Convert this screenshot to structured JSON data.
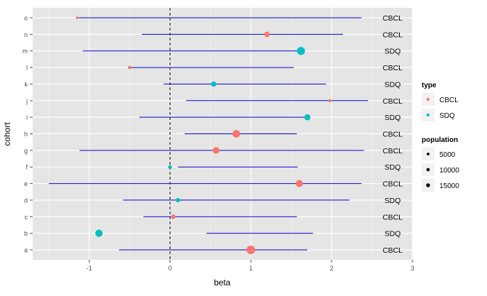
{
  "chart_data": {
    "type": "forest",
    "title": "",
    "xlabel": "beta",
    "ylabel": "cohort",
    "xlim": [
      -1.7,
      3.0
    ],
    "x_ticks": [
      -1,
      0,
      1,
      2,
      3
    ],
    "reference_line_x": 0,
    "grid": true,
    "legend_position": "right",
    "colors": {
      "CBCL": "#F8766D",
      "SDQ": "#00BFC4",
      "interval": "#0000CD",
      "panel": "#E5E5E5"
    },
    "legend_type": {
      "title": "type",
      "entries": [
        "CBCL",
        "SDQ"
      ]
    },
    "legend_population": {
      "title": "population",
      "values": [
        5000,
        10000,
        15000
      ],
      "labels": [
        "5000",
        "10000",
        "15000"
      ]
    },
    "rows": [
      {
        "cohort": "a",
        "type": "CBCL",
        "beta": 1.0,
        "lower": -0.63,
        "upper": 1.7,
        "population": 16500
      },
      {
        "cohort": "b",
        "type": "SDQ",
        "beta": -0.88,
        "lower": 0.45,
        "upper": 1.77,
        "population": 11000
      },
      {
        "cohort": "c",
        "type": "CBCL",
        "beta": 0.04,
        "lower": -0.33,
        "upper": 1.57,
        "population": 3000
      },
      {
        "cohort": "d",
        "type": "SDQ",
        "beta": 0.1,
        "lower": -0.58,
        "upper": 2.22,
        "population": 2500
      },
      {
        "cohort": "e",
        "type": "CBCL",
        "beta": 1.6,
        "lower": -1.5,
        "upper": 2.37,
        "population": 10500
      },
      {
        "cohort": "f",
        "type": "SDQ",
        "beta": 0.0,
        "lower": 0.1,
        "upper": 1.58,
        "population": 1500
      },
      {
        "cohort": "g",
        "type": "CBCL",
        "beta": 0.57,
        "lower": -1.12,
        "upper": 2.4,
        "population": 9000
      },
      {
        "cohort": "h",
        "type": "CBCL",
        "beta": 0.82,
        "lower": 0.18,
        "upper": 1.57,
        "population": 12500
      },
      {
        "cohort": "i",
        "type": "SDQ",
        "beta": 1.7,
        "lower": -0.38,
        "upper": 1.72,
        "population": 7000
      },
      {
        "cohort": "j",
        "type": "CBCL",
        "beta": 1.98,
        "lower": 0.2,
        "upper": 2.45,
        "population": 800
      },
      {
        "cohort": "k",
        "type": "SDQ",
        "beta": 0.54,
        "lower": -0.08,
        "upper": 1.93,
        "population": 4500
      },
      {
        "cohort": "l",
        "type": "CBCL",
        "beta": -0.5,
        "lower": -0.52,
        "upper": 1.53,
        "population": 900
      },
      {
        "cohort": "m",
        "type": "SDQ",
        "beta": 1.62,
        "lower": -1.08,
        "upper": 1.62,
        "population": 14000
      },
      {
        "cohort": "n",
        "type": "CBCL",
        "beta": 1.2,
        "lower": -0.35,
        "upper": 2.14,
        "population": 5000
      },
      {
        "cohort": "o",
        "type": "CBCL",
        "beta": -1.15,
        "lower": -1.15,
        "upper": 2.37,
        "population": 200
      }
    ]
  }
}
